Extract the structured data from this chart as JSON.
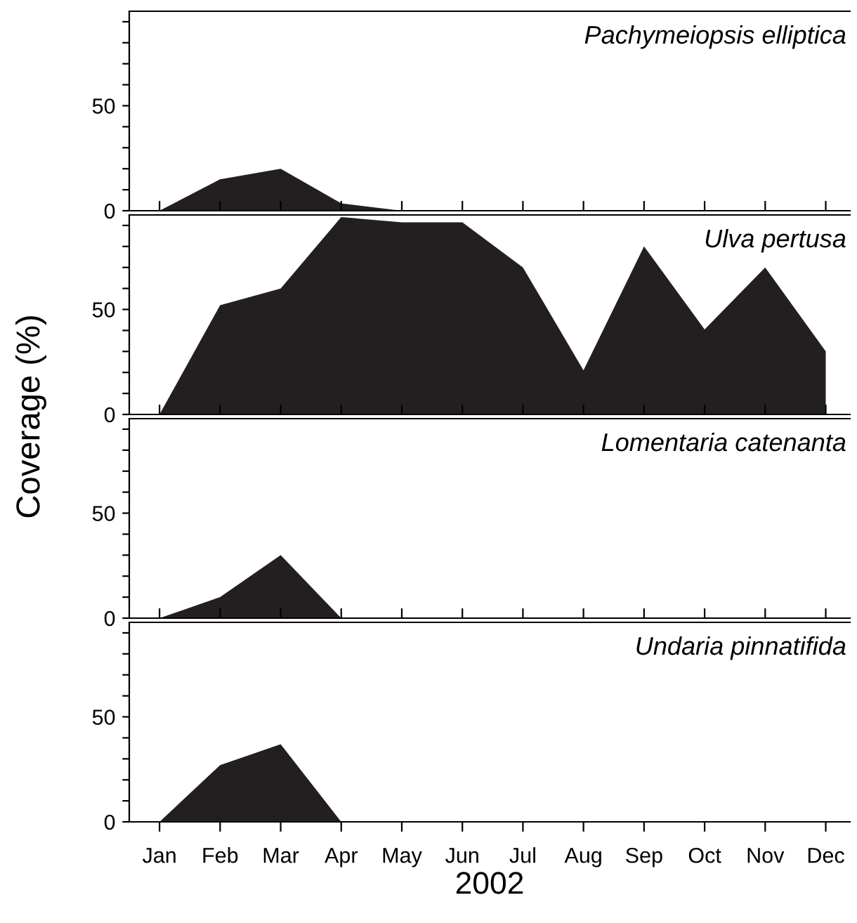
{
  "chart_data": [
    {
      "type": "area",
      "title": "Pachymeiopsis elliptica",
      "categories": [
        null,
        null,
        null,
        null,
        null,
        null,
        null,
        null,
        null,
        null,
        null,
        null
      ],
      "values": [
        0,
        15,
        20,
        3.5,
        0,
        0,
        0,
        0,
        0,
        0,
        0,
        0
      ],
      "color": "#231f20",
      "ylim": [
        0,
        95
      ],
      "yticks": [
        0,
        {
          "value": 10,
          "label": null
        },
        {
          "value": 20,
          "label": null
        },
        {
          "value": 30,
          "label": null
        },
        {
          "value": 40,
          "label": null
        },
        50,
        {
          "value": 60,
          "label": null
        },
        {
          "value": 70,
          "label": null
        },
        {
          "value": 80,
          "label": null
        },
        {
          "value": 90,
          "label": null
        }
      ],
      "tick_labels": "y",
      "grid": false,
      "legend": false
    },
    {
      "type": "area",
      "title": "Ulva pertusa",
      "ylabel": "Coverage (%)",
      "categories": [
        null,
        null,
        null,
        null,
        null,
        null,
        null,
        null,
        null,
        null,
        null,
        null
      ],
      "values": [
        0,
        52,
        60,
        94,
        91.5,
        91.5,
        70,
        21,
        80,
        40.5,
        70,
        30
      ],
      "color": "#231f20",
      "ylim": [
        0,
        95
      ],
      "yticks": [
        0,
        {
          "value": 10,
          "label": null
        },
        {
          "value": 20,
          "label": null
        },
        {
          "value": 30,
          "label": null
        },
        {
          "value": 40,
          "label": null
        },
        50,
        {
          "value": 60,
          "label": null
        },
        {
          "value": 70,
          "label": null
        },
        {
          "value": 80,
          "label": null
        },
        {
          "value": 90,
          "label": null
        }
      ],
      "tick_labels": "y",
      "grid": false,
      "legend": false
    },
    {
      "type": "area",
      "title": "Lomentaria catenanta",
      "categories": [
        null,
        null,
        null,
        null,
        null,
        null,
        null,
        null,
        null,
        null,
        null,
        null
      ],
      "values": [
        0,
        10,
        30,
        0,
        0,
        0,
        0,
        0,
        0,
        0,
        0,
        0
      ],
      "color": "#231f20",
      "ylim": [
        0,
        95
      ],
      "yticks": [
        0,
        {
          "value": 10,
          "label": null
        },
        {
          "value": 20,
          "label": null
        },
        {
          "value": 30,
          "label": null
        },
        {
          "value": 40,
          "label": null
        },
        50,
        {
          "value": 60,
          "label": null
        },
        {
          "value": 70,
          "label": null
        },
        {
          "value": 80,
          "label": null
        },
        {
          "value": 90,
          "label": null
        }
      ],
      "tick_labels": "y",
      "grid": false,
      "legend": false
    },
    {
      "type": "area",
      "title": "Undaria pinnatifida",
      "xlabel": "2002",
      "categories": [
        "Jan",
        "Feb",
        "Mar",
        "Apr",
        "May",
        "Jun",
        "Jul",
        "Aug",
        "Sep",
        "Oct",
        "Nov",
        "Dec"
      ],
      "values": [
        0,
        27,
        37,
        0,
        0,
        0,
        0,
        0,
        0,
        0,
        0,
        0
      ],
      "color": "#231f20",
      "ylim": [
        0,
        95
      ],
      "yticks": [
        0,
        {
          "value": 10,
          "label": null
        },
        {
          "value": 20,
          "label": null
        },
        {
          "value": 30,
          "label": null
        },
        {
          "value": 40,
          "label": null
        },
        50,
        {
          "value": 60,
          "label": null
        },
        {
          "value": 70,
          "label": null
        },
        {
          "value": 80,
          "label": null
        },
        {
          "value": 90,
          "label": null
        }
      ],
      "grid": false,
      "legend": false
    }
  ]
}
